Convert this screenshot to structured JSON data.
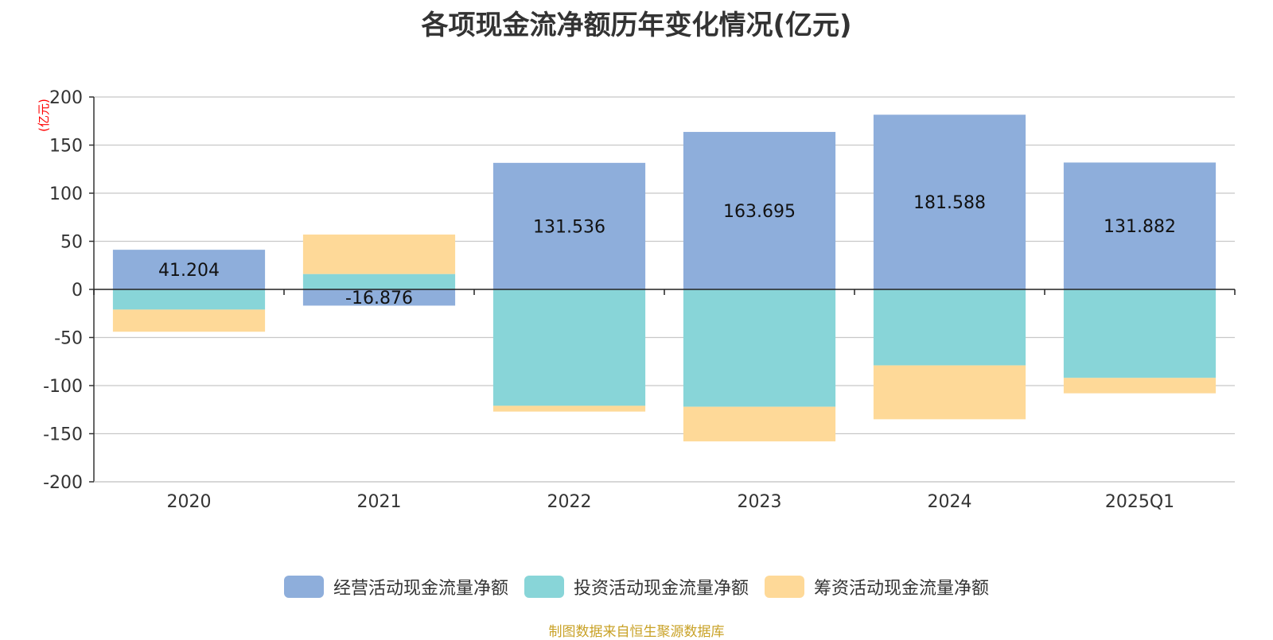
{
  "chart_data": {
    "type": "bar",
    "stacked": true,
    "title": "各项现金流净额历年变化情况(亿元)",
    "ylabel": "(亿元)",
    "ylim": [
      -200,
      200
    ],
    "yticks": [
      200,
      150,
      100,
      50,
      0,
      -50,
      -100,
      -150,
      -200
    ],
    "grid": true,
    "legend_position": "bottom",
    "categories": [
      "2020",
      "2021",
      "2022",
      "2023",
      "2024",
      "2025Q1"
    ],
    "series": [
      {
        "name": "经营活动现金流量净额",
        "color": "#8eaedb",
        "values": [
          41.204,
          -16.876,
          131.536,
          163.695,
          181.588,
          131.882
        ],
        "labels": [
          "41.204",
          "-16.876",
          "131.536",
          "163.695",
          "181.588",
          "131.882"
        ]
      },
      {
        "name": "投资活动现金流量净额",
        "color": "#88d5d8",
        "values": [
          -21,
          16,
          -121,
          -122,
          -79,
          -92
        ]
      },
      {
        "name": "筹资活动现金流量净额",
        "color": "#fed998",
        "values": [
          -23,
          41,
          -6,
          -36,
          -56,
          -16
        ]
      }
    ],
    "source": "制图数据来自恒生聚源数据库"
  }
}
